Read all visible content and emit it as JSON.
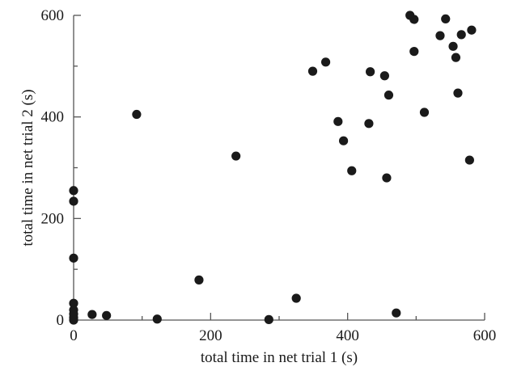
{
  "chart_data": {
    "type": "scatter",
    "xlabel": "total time in net trial 1 (s)",
    "ylabel": "total time in net trial 2 (s)",
    "xlim": [
      0,
      600
    ],
    "ylim": [
      0,
      600
    ],
    "x_ticks": [
      0,
      200,
      400,
      600
    ],
    "y_ticks": [
      0,
      200,
      400,
      600
    ],
    "x_tick_labels": [
      "0",
      "200",
      "400",
      "600"
    ],
    "y_tick_labels": [
      "0",
      "200",
      "400",
      "600"
    ],
    "x_minor_step": 100,
    "y_minor_step": 100,
    "grid": false,
    "marker_color": "#1a1a1a",
    "points": [
      {
        "x": 0,
        "y": 0
      },
      {
        "x": 0,
        "y": 5
      },
      {
        "x": 0,
        "y": 12
      },
      {
        "x": 0,
        "y": 20
      },
      {
        "x": 0,
        "y": 33
      },
      {
        "x": 0,
        "y": 122
      },
      {
        "x": 0,
        "y": 234
      },
      {
        "x": 0,
        "y": 255
      },
      {
        "x": 27,
        "y": 11
      },
      {
        "x": 48,
        "y": 9
      },
      {
        "x": 92,
        "y": 405
      },
      {
        "x": 122,
        "y": 2
      },
      {
        "x": 183,
        "y": 79
      },
      {
        "x": 237,
        "y": 323
      },
      {
        "x": 285,
        "y": 1
      },
      {
        "x": 325,
        "y": 43
      },
      {
        "x": 349,
        "y": 490
      },
      {
        "x": 368,
        "y": 508
      },
      {
        "x": 386,
        "y": 391
      },
      {
        "x": 394,
        "y": 353
      },
      {
        "x": 406,
        "y": 294
      },
      {
        "x": 431,
        "y": 387
      },
      {
        "x": 433,
        "y": 489
      },
      {
        "x": 454,
        "y": 481
      },
      {
        "x": 457,
        "y": 280
      },
      {
        "x": 460,
        "y": 443
      },
      {
        "x": 471,
        "y": 14
      },
      {
        "x": 491,
        "y": 600
      },
      {
        "x": 497,
        "y": 592
      },
      {
        "x": 497,
        "y": 529
      },
      {
        "x": 512,
        "y": 409
      },
      {
        "x": 535,
        "y": 560
      },
      {
        "x": 543,
        "y": 593
      },
      {
        "x": 554,
        "y": 539
      },
      {
        "x": 558,
        "y": 517
      },
      {
        "x": 561,
        "y": 447
      },
      {
        "x": 566,
        "y": 562
      },
      {
        "x": 578,
        "y": 315
      },
      {
        "x": 581,
        "y": 571
      }
    ]
  }
}
